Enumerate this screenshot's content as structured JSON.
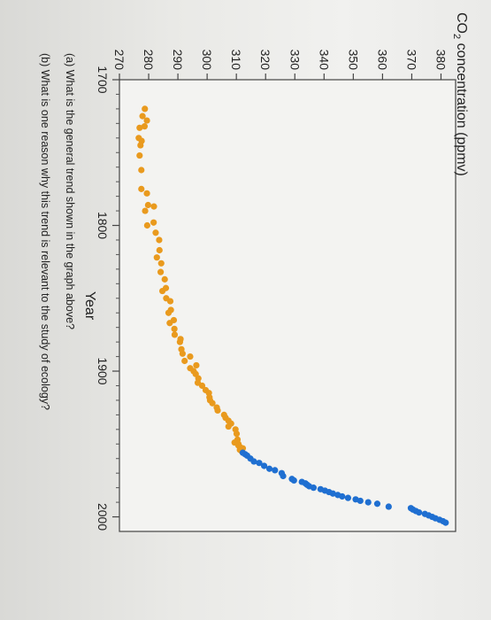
{
  "chart_data": {
    "type": "scatter",
    "title": "",
    "ylabel_prefix": "CO",
    "ylabel_sub": "2",
    "ylabel_suffix": " concentration (ppmv)",
    "xlabel": "Year",
    "xlim": [
      1700,
      2010
    ],
    "ylim": [
      270,
      385
    ],
    "x_ticks": [
      "1700",
      "1800",
      "1900",
      "2000"
    ],
    "y_ticks": [
      "270",
      "280",
      "290",
      "300",
      "310",
      "320",
      "330",
      "340",
      "350",
      "360",
      "370",
      "380"
    ],
    "grid": false,
    "series": [
      {
        "color": "#e99a1e",
        "points": [
          [
            1720,
            278.7
          ],
          [
            1725,
            277.9
          ],
          [
            1728,
            279.4
          ],
          [
            1732,
            278.6
          ],
          [
            1733,
            276.9
          ],
          [
            1740,
            276.6
          ],
          [
            1742,
            277.6
          ],
          [
            1745,
            277.2
          ],
          [
            1752,
            276.9
          ],
          [
            1762,
            277.5
          ],
          [
            1775,
            277.5
          ],
          [
            1778,
            279.4
          ],
          [
            1786,
            279.8
          ],
          [
            1787,
            281.8
          ],
          [
            1790,
            278.8
          ],
          [
            1798,
            281.7
          ],
          [
            1800,
            279.5
          ],
          [
            1805,
            282.4
          ],
          [
            1810,
            283.6
          ],
          [
            1817,
            283.7
          ],
          [
            1822,
            282.8
          ],
          [
            1826,
            284.3
          ],
          [
            1832,
            284.1
          ],
          [
            1837,
            285.5
          ],
          [
            1843,
            285.9
          ],
          [
            1845,
            284.7
          ],
          [
            1850,
            286.0
          ],
          [
            1852,
            287.4
          ],
          [
            1858,
            287.6
          ],
          [
            1860,
            286.8
          ],
          [
            1865,
            288.6
          ],
          [
            1867,
            287.2
          ],
          [
            1871,
            288.8
          ],
          [
            1875,
            288.9
          ],
          [
            1878,
            290.9
          ],
          [
            1880,
            290.7
          ],
          [
            1885,
            291.2
          ],
          [
            1888,
            291.6
          ],
          [
            1890,
            294.2
          ],
          [
            1893,
            292.3
          ],
          [
            1896,
            296.3
          ],
          [
            1898,
            294.2
          ],
          [
            1900,
            295.4
          ],
          [
            1902,
            296.1
          ],
          [
            1905,
            297.0
          ],
          [
            1908,
            296.8
          ],
          [
            1910,
            298.3
          ],
          [
            1913,
            299.5
          ],
          [
            1915,
            300.6
          ],
          [
            1918,
            300.8
          ],
          [
            1920,
            301.0
          ],
          [
            1922,
            301.8
          ],
          [
            1925,
            303.3
          ],
          [
            1927,
            303.6
          ],
          [
            1930,
            305.8
          ],
          [
            1932,
            306.3
          ],
          [
            1934,
            307.3
          ],
          [
            1936,
            308.2
          ],
          [
            1938,
            307.3
          ],
          [
            1940,
            309.7
          ],
          [
            1943,
            310.1
          ],
          [
            1947,
            310.4
          ],
          [
            1949,
            309.4
          ],
          [
            1950,
            310.7
          ],
          [
            1951,
            310.7
          ],
          [
            1952,
            311.2
          ],
          [
            1953,
            312.2
          ],
          [
            1954,
            311.2
          ],
          [
            1955,
            311.8
          ]
        ]
      },
      {
        "color": "#1f6fd1",
        "points": [
          [
            1956,
            312.2
          ],
          [
            1957,
            313.0
          ],
          [
            1958,
            313.7
          ],
          [
            1960,
            314.8
          ],
          [
            1962,
            316.0
          ],
          [
            1963,
            317.8
          ],
          [
            1965,
            319.5
          ],
          [
            1967,
            321.3
          ],
          [
            1968,
            323.2
          ],
          [
            1970,
            325.5
          ],
          [
            1972,
            326.0
          ],
          [
            1974,
            329.0
          ],
          [
            1975,
            329.7
          ],
          [
            1976,
            332.4
          ],
          [
            1977,
            333.6
          ],
          [
            1978,
            334.2
          ],
          [
            1979,
            334.9
          ],
          [
            1980,
            336.4
          ],
          [
            1981,
            338.8
          ],
          [
            1982,
            340.3
          ],
          [
            1983,
            341.7
          ],
          [
            1984,
            343.0
          ],
          [
            1985,
            344.7
          ],
          [
            1986,
            346.2
          ],
          [
            1987,
            348.2
          ],
          [
            1988,
            350.8
          ],
          [
            1989,
            352.4
          ],
          [
            1990,
            355.1
          ],
          [
            1991,
            358.2
          ],
          [
            1993,
            362.1
          ],
          [
            1994,
            369.7
          ],
          [
            1995,
            370.4
          ],
          [
            1996,
            371.4
          ],
          [
            1997,
            372.5
          ],
          [
            1998,
            374.5
          ],
          [
            1999,
            375.8
          ],
          [
            2000,
            377.0
          ],
          [
            2001,
            378.1
          ],
          [
            2002,
            379.5
          ],
          [
            2003,
            380.7
          ],
          [
            2004,
            381.6
          ]
        ]
      }
    ]
  },
  "questions": {
    "a": "(a) What is the general trend shown in the graph above?",
    "b": "(b) What is one reason why this trend is relevant to the study of ecology?"
  }
}
